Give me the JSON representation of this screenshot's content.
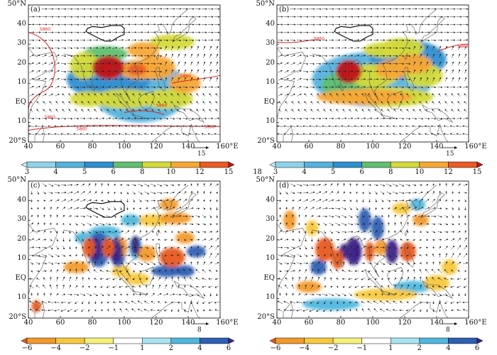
{
  "panels": [
    {
      "id": "a",
      "label": "(a)",
      "field": "precip",
      "contours": true,
      "vector_ref": "15",
      "barset": "precip"
    },
    {
      "id": "b",
      "label": "(b)",
      "field": "precip",
      "contours": true,
      "vector_ref": "15",
      "barset": "precip"
    },
    {
      "id": "c",
      "label": "(c)",
      "field": "anomaly",
      "contours": false,
      "vector_ref": "8",
      "barset": "anom"
    },
    {
      "id": "d",
      "label": "(d)",
      "field": "anomaly",
      "contours": false,
      "vector_ref": "8",
      "barset": "anom"
    }
  ],
  "axes": {
    "y_ticks": [
      "50°N",
      "40",
      "30",
      "20",
      "10",
      "EQ",
      "10",
      "20°S"
    ],
    "x_ticks": [
      "40",
      "60",
      "80",
      "100",
      "120",
      "140",
      "160°E"
    ]
  },
  "contour_label": "5860",
  "colorbars": {
    "precip": {
      "labels": [
        "3",
        "4",
        "5",
        "6",
        "8",
        "10",
        "12",
        "15",
        "18"
      ],
      "colors": [
        "#c8ecf5",
        "#8fd3ea",
        "#55b2dd",
        "#2f8fd0",
        "#60c070",
        "#d4da3a",
        "#f7a736",
        "#ea5a24",
        "#c0161a"
      ]
    },
    "anom": {
      "labels": [
        "−6",
        "−4",
        "−2",
        "−1",
        "1",
        "2",
        "4",
        "6"
      ],
      "colors": [
        "#e85a1d",
        "#f39a2b",
        "#f7c83d",
        "#f5ef7c",
        "#ffffff",
        "#a8e3f0",
        "#4fb7dd",
        "#2e5fb3",
        "#3c2388"
      ]
    }
  },
  "colors": {
    "land_line": "#555555",
    "contour_red": "#e02020",
    "plateau": "#ffffff"
  }
}
